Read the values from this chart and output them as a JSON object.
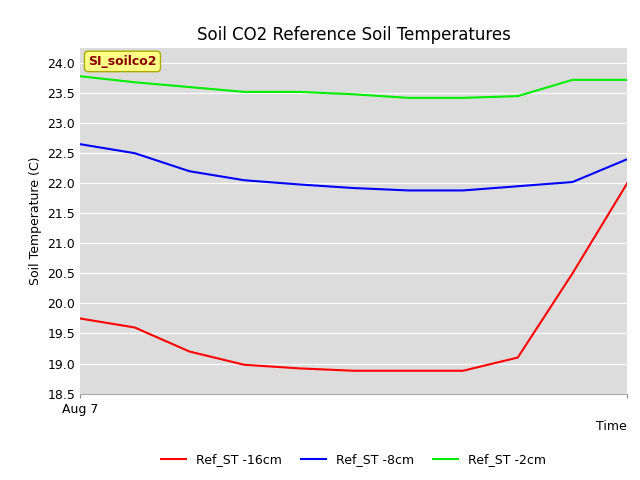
{
  "title": "Soil CO2 Reference Soil Temperatures",
  "xlabel": "Time",
  "ylabel": "Soil Temperature (C)",
  "annotation_text": "SI_soilco2",
  "annotation_color": "#8B0000",
  "annotation_bg": "#FFFF88",
  "annotation_border": "#AAAA00",
  "ylim": [
    18.5,
    24.25
  ],
  "yticks": [
    18.5,
    19.0,
    19.5,
    20.0,
    20.5,
    21.0,
    21.5,
    22.0,
    22.5,
    23.0,
    23.5,
    24.0
  ],
  "x": [
    0,
    1,
    2,
    3,
    4,
    5,
    6,
    7,
    8,
    9,
    10
  ],
  "ref_st_16cm": [
    19.75,
    19.6,
    19.2,
    18.98,
    18.92,
    18.88,
    18.88,
    18.88,
    19.1,
    20.5,
    22.0
  ],
  "ref_st_8cm": [
    22.65,
    22.5,
    22.2,
    22.05,
    21.98,
    21.92,
    21.88,
    21.88,
    21.95,
    22.02,
    22.4
  ],
  "ref_st_2cm": [
    23.78,
    23.68,
    23.6,
    23.52,
    23.52,
    23.48,
    23.42,
    23.42,
    23.45,
    23.72,
    23.72
  ],
  "color_16cm": "#FF0000",
  "color_8cm": "#0000FF",
  "color_2cm": "#00EE00",
  "line_width": 1.5,
  "legend_labels": [
    "Ref_ST -16cm",
    "Ref_ST -8cm",
    "Ref_ST -2cm"
  ],
  "bg_color": "#DCDCDC",
  "fig_bg": "#FFFFFF",
  "xtick_label": "Aug 7",
  "title_fontsize": 12,
  "axis_label_fontsize": 9,
  "tick_fontsize": 9,
  "legend_fontsize": 9
}
